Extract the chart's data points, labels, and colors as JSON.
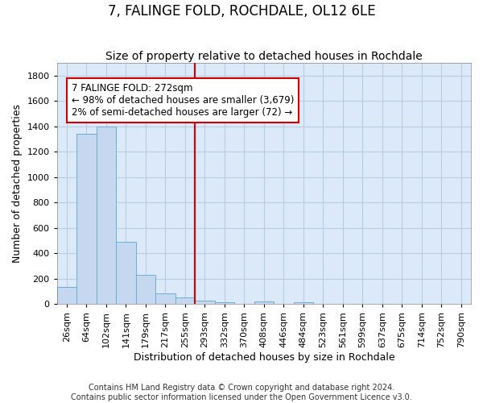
{
  "title": "7, FALINGE FOLD, ROCHDALE, OL12 6LE",
  "subtitle": "Size of property relative to detached houses in Rochdale",
  "xlabel": "Distribution of detached houses by size in Rochdale",
  "ylabel": "Number of detached properties",
  "footnote1": "Contains HM Land Registry data © Crown copyright and database right 2024.",
  "footnote2": "Contains public sector information licensed under the Open Government Licence v3.0.",
  "bar_labels": [
    "26sqm",
    "64sqm",
    "102sqm",
    "141sqm",
    "179sqm",
    "217sqm",
    "255sqm",
    "293sqm",
    "332sqm",
    "370sqm",
    "408sqm",
    "446sqm",
    "484sqm",
    "523sqm",
    "561sqm",
    "599sqm",
    "637sqm",
    "675sqm",
    "714sqm",
    "752sqm",
    "790sqm"
  ],
  "bar_values": [
    135,
    1340,
    1400,
    490,
    230,
    82,
    50,
    27,
    15,
    0,
    20,
    0,
    15,
    0,
    0,
    0,
    0,
    0,
    0,
    0,
    0
  ],
  "bar_color": "#c5d8f0",
  "bar_edge_color": "#6baed6",
  "vline_x": 6.5,
  "vline_color": "#cc0000",
  "annotation_line1": "7 FALINGE FOLD: 272sqm",
  "annotation_line2": "← 98% of detached houses are smaller (3,679)",
  "annotation_line3": "2% of semi-detached houses are larger (72) →",
  "annotation_box_color": "#cc0000",
  "ylim": [
    0,
    1900
  ],
  "yticks": [
    0,
    200,
    400,
    600,
    800,
    1000,
    1200,
    1400,
    1600,
    1800
  ],
  "bg_color": "#dce9f8",
  "grid_color": "#b8cce4",
  "title_fontsize": 12,
  "subtitle_fontsize": 10,
  "axis_label_fontsize": 9,
  "tick_fontsize": 8,
  "footnote_fontsize": 7,
  "font_family": "DejaVu Sans"
}
